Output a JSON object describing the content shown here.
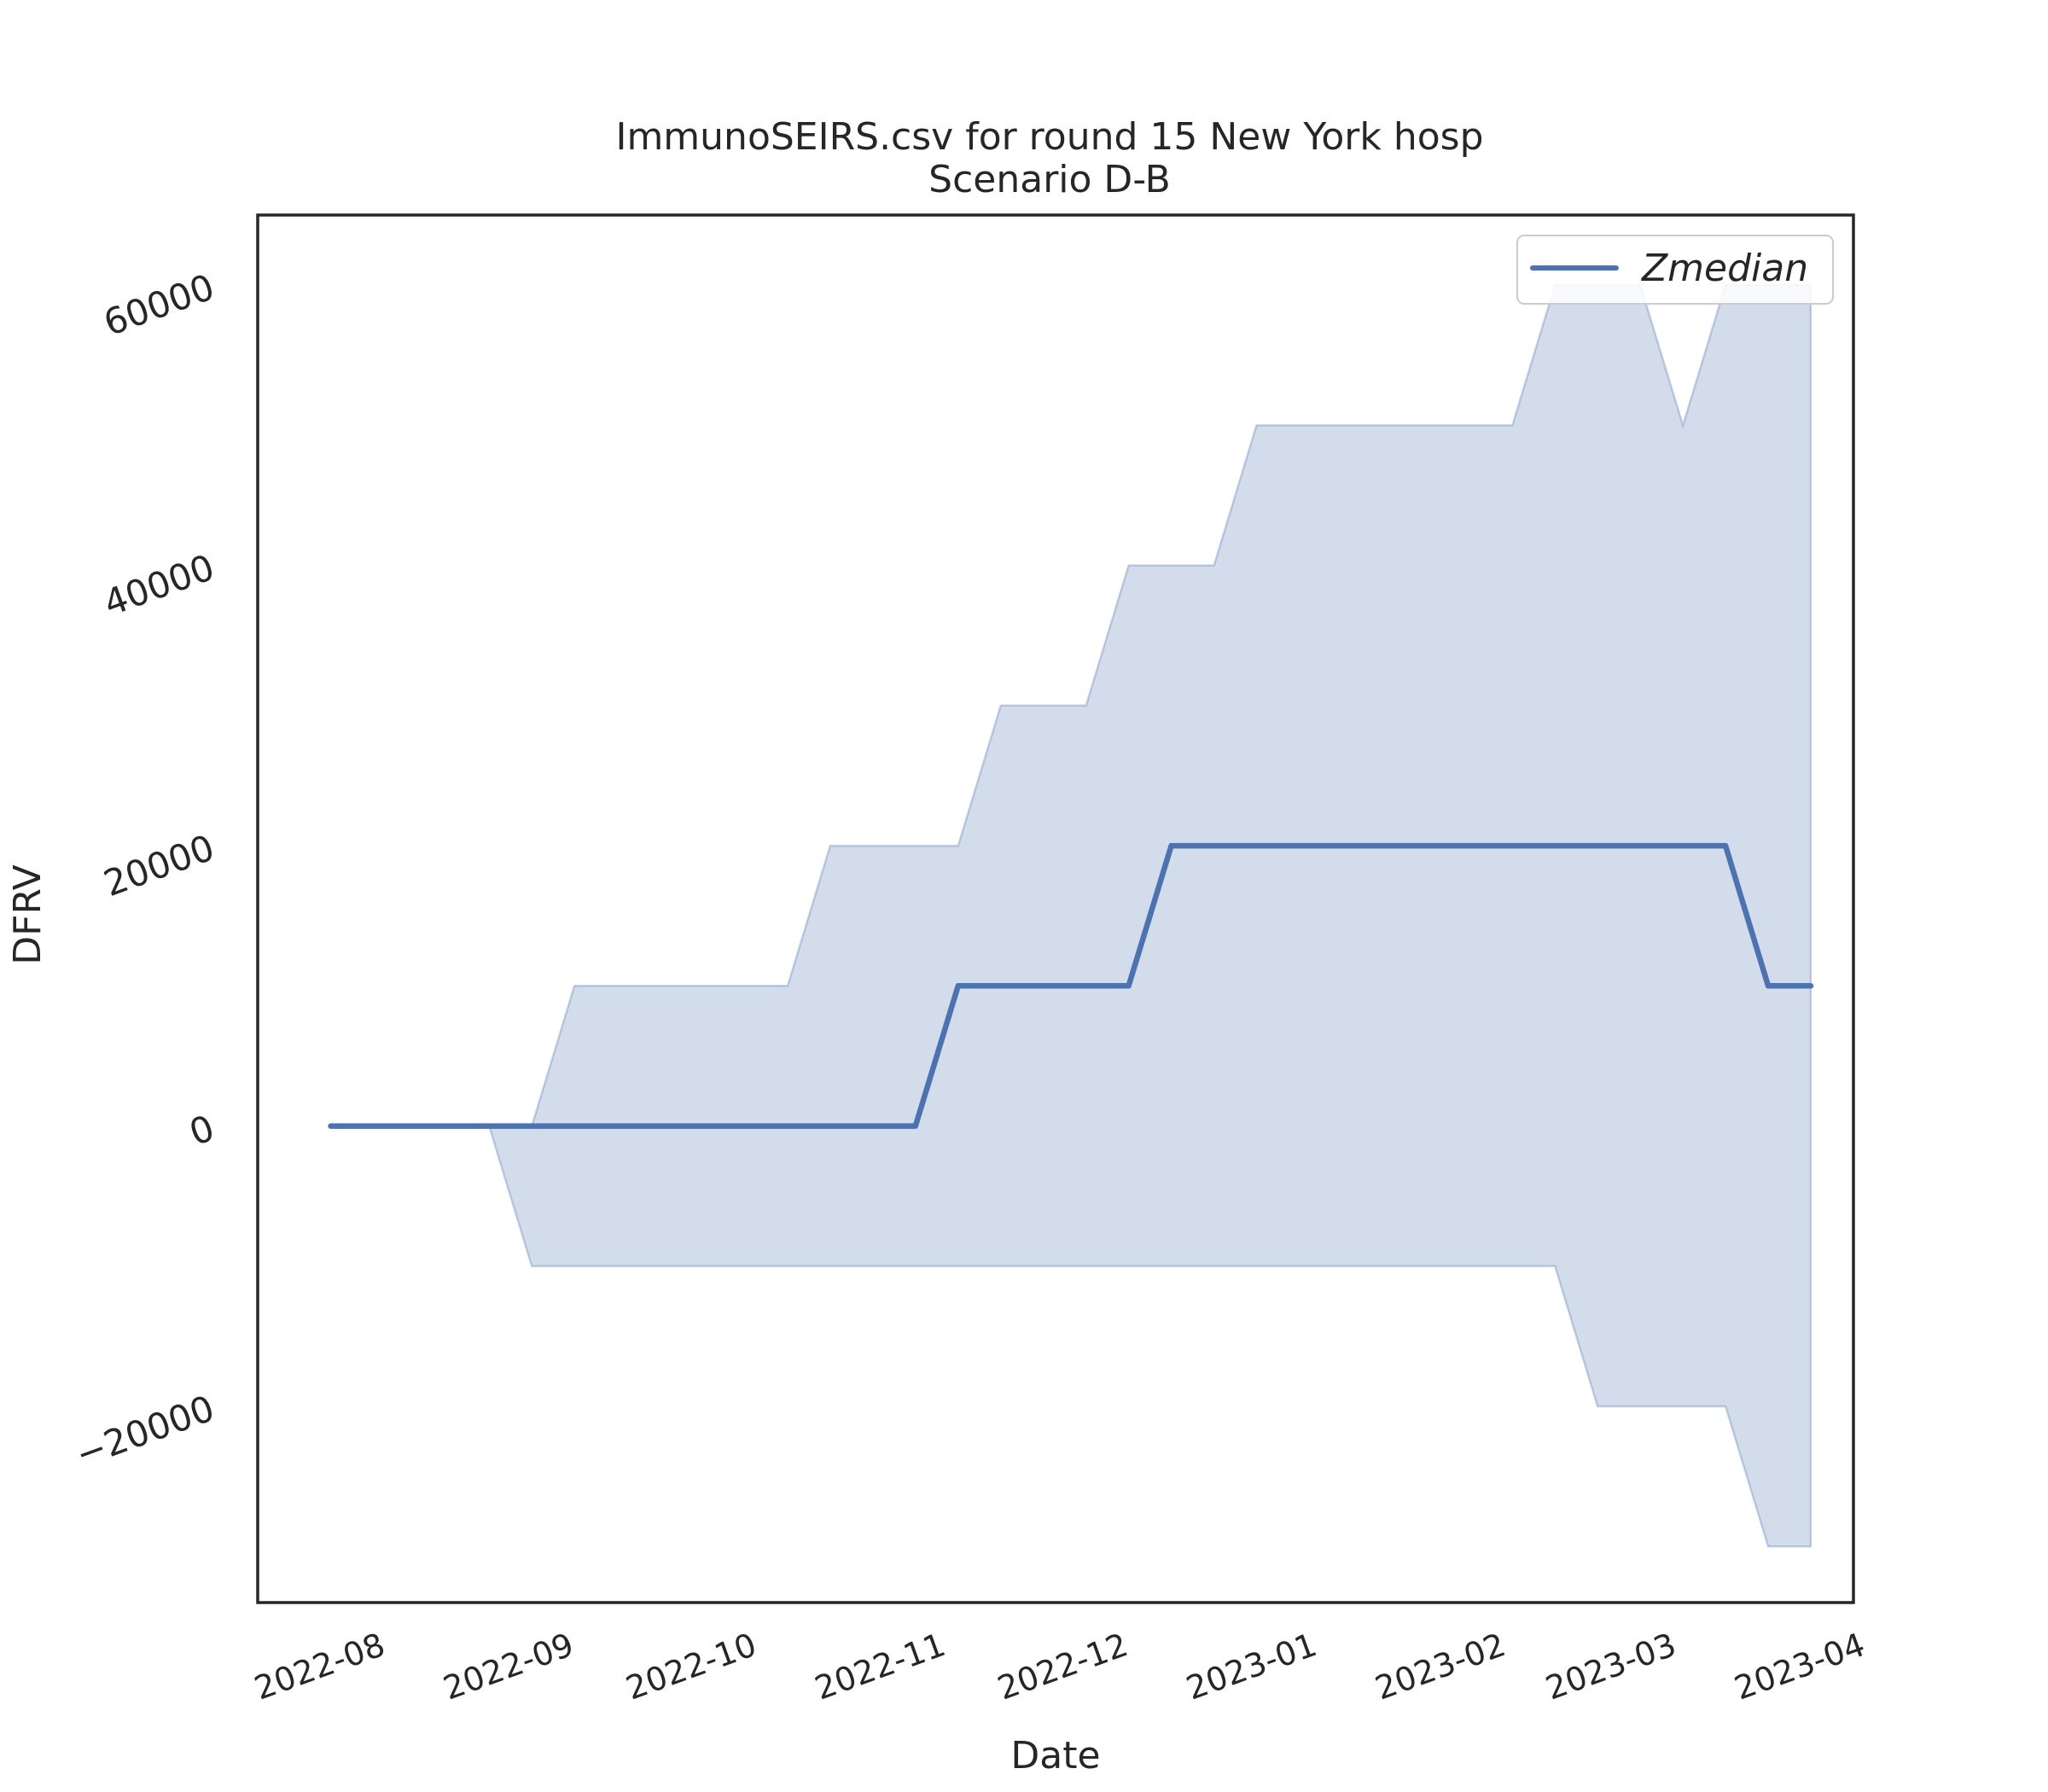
{
  "chart_data": {
    "type": "line",
    "title_line1": "ImmunoSEIRS.csv for round 15 New York hosp",
    "title_line2": "Scenario D-B",
    "xlabel": "Date",
    "ylabel": "DFRV",
    "xlim": [
      "2022-07-13",
      "2023-04-01"
    ],
    "ylim": [
      -34000,
      65000
    ],
    "x_ticks": [
      "2022-08",
      "2022-09",
      "2022-10",
      "2022-11",
      "2022-12",
      "2023-01",
      "2023-02",
      "2023-03",
      "2023-04"
    ],
    "y_ticks": [
      -20000,
      0,
      20000,
      40000,
      60000
    ],
    "y_tick_labels": [
      "−20000",
      "0",
      "20000",
      "40000",
      "60000"
    ],
    "legend_position": "top-right",
    "series": [
      {
        "name": "Zmedian",
        "color": "#4c72b0",
        "points": [
          {
            "date": "2022-07-25",
            "value": 0
          },
          {
            "date": "2022-10-29",
            "value": 0
          },
          {
            "date": "2022-11-05",
            "value": 10000
          },
          {
            "date": "2022-12-03",
            "value": 10000
          },
          {
            "date": "2022-12-10",
            "value": 20000
          },
          {
            "date": "2023-03-11",
            "value": 20000
          },
          {
            "date": "2023-03-18",
            "value": 10000
          },
          {
            "date": "2023-03-25",
            "value": 10000
          }
        ]
      }
    ],
    "band": {
      "color": "#4c72b0",
      "opacity": 0.25,
      "points": [
        {
          "date": "2022-07-25",
          "lower": 0,
          "upper": 0
        },
        {
          "date": "2022-08-20",
          "lower": 0,
          "upper": 0
        },
        {
          "date": "2022-08-27",
          "lower": -10000,
          "upper": 0
        },
        {
          "date": "2022-09-03",
          "lower": -10000,
          "upper": 10000
        },
        {
          "date": "2022-10-08",
          "lower": -10000,
          "upper": 10000
        },
        {
          "date": "2022-10-15",
          "lower": -10000,
          "upper": 20000
        },
        {
          "date": "2022-11-05",
          "lower": -10000,
          "upper": 20000
        },
        {
          "date": "2022-11-12",
          "lower": -10000,
          "upper": 30000
        },
        {
          "date": "2022-11-26",
          "lower": -10000,
          "upper": 30000
        },
        {
          "date": "2022-12-03",
          "lower": -10000,
          "upper": 40000
        },
        {
          "date": "2022-12-17",
          "lower": -10000,
          "upper": 40000
        },
        {
          "date": "2022-12-24",
          "lower": -10000,
          "upper": 50000
        },
        {
          "date": "2023-02-04",
          "lower": -10000,
          "upper": 50000
        },
        {
          "date": "2023-02-11",
          "lower": -10000,
          "upper": 60000
        },
        {
          "date": "2023-02-18",
          "lower": -20000,
          "upper": 60000
        },
        {
          "date": "2023-02-25",
          "lower": -20000,
          "upper": 60000
        },
        {
          "date": "2023-03-04",
          "lower": -20000,
          "upper": 50000
        },
        {
          "date": "2023-03-11",
          "lower": -20000,
          "upper": 60000
        },
        {
          "date": "2023-03-18",
          "lower": -30000,
          "upper": 60000
        },
        {
          "date": "2023-03-25",
          "lower": -30000,
          "upper": 60000
        }
      ]
    }
  }
}
